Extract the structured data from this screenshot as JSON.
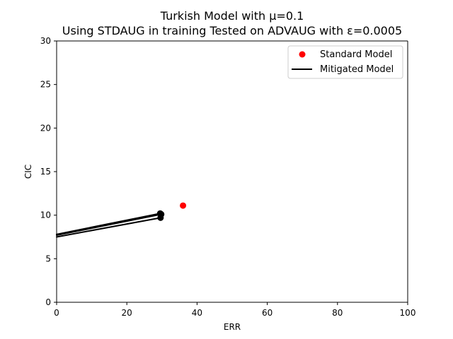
{
  "chart_data": {
    "type": "scatter",
    "title": "Turkish Model with μ=0.1",
    "subtitle": "Using STDAUG in training Tested on ADVAUG with ε=0.0005",
    "xlabel": "ERR",
    "ylabel": "CIC",
    "xlim": [
      0,
      100
    ],
    "ylim": [
      0,
      30
    ],
    "xticks": [
      "0",
      "20",
      "40",
      "60",
      "80",
      "100"
    ],
    "yticks": [
      "0",
      "5",
      "10",
      "15",
      "20",
      "25",
      "30"
    ],
    "grid": false,
    "legend_position": "top-right",
    "series": [
      {
        "name": "Standard Model",
        "kind": "point",
        "color": "#ff0000",
        "points": [
          {
            "x": 36.0,
            "y": 11.1
          }
        ]
      },
      {
        "name": "Mitigated Model",
        "kind": "segments",
        "color": "#000000",
        "segments": [
          {
            "x": [
              0,
              29.5
            ],
            "y": [
              7.8,
              10.2
            ]
          },
          {
            "x": [
              0,
              29.8
            ],
            "y": [
              7.7,
              10.1
            ]
          },
          {
            "x": [
              0,
              29.6
            ],
            "y": [
              7.5,
              9.7
            ]
          }
        ],
        "points": [
          {
            "x": 29.5,
            "y": 10.2
          },
          {
            "x": 29.8,
            "y": 10.1
          },
          {
            "x": 29.6,
            "y": 9.7
          }
        ]
      }
    ]
  }
}
